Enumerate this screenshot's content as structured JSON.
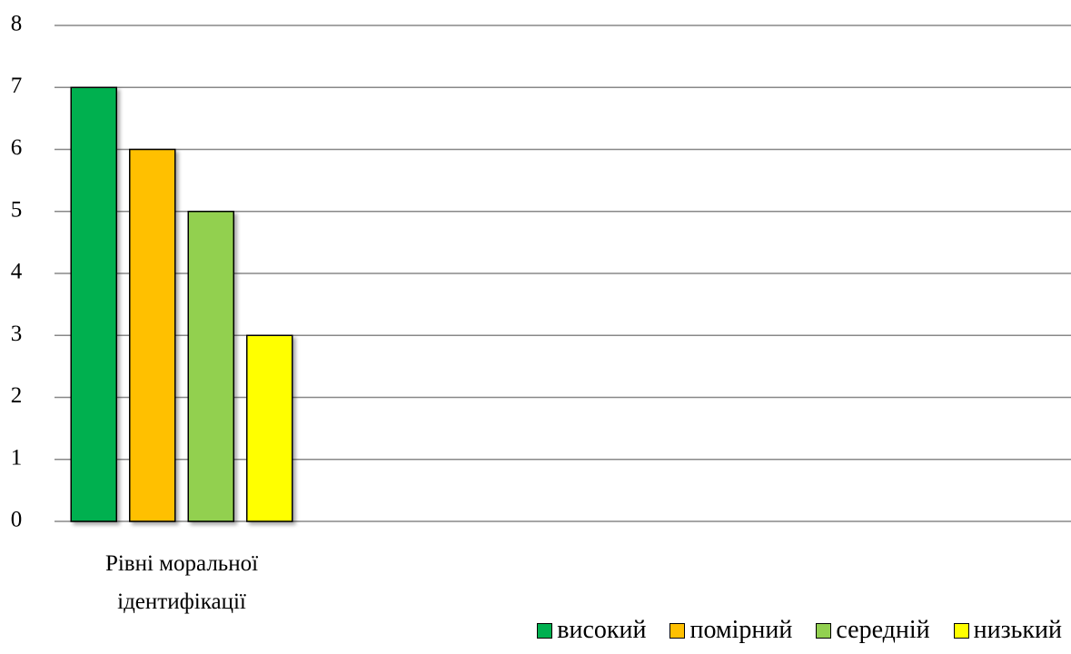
{
  "chart_data": {
    "type": "bar",
    "categories": [
      "Рівні моральної ідентифікації"
    ],
    "series": [
      {
        "name": "високий",
        "color": "#00b050",
        "values": [
          7
        ]
      },
      {
        "name": "помірний",
        "color": "#ffc000",
        "values": [
          6
        ]
      },
      {
        "name": "середній",
        "color": "#92d050",
        "values": [
          5
        ]
      },
      {
        "name": "низький",
        "color": "#ffff00",
        "values": [
          3
        ]
      }
    ],
    "ylim": [
      0,
      8
    ],
    "yticks": [
      0,
      1,
      2,
      3,
      4,
      5,
      6,
      7,
      8
    ],
    "grid": true
  }
}
